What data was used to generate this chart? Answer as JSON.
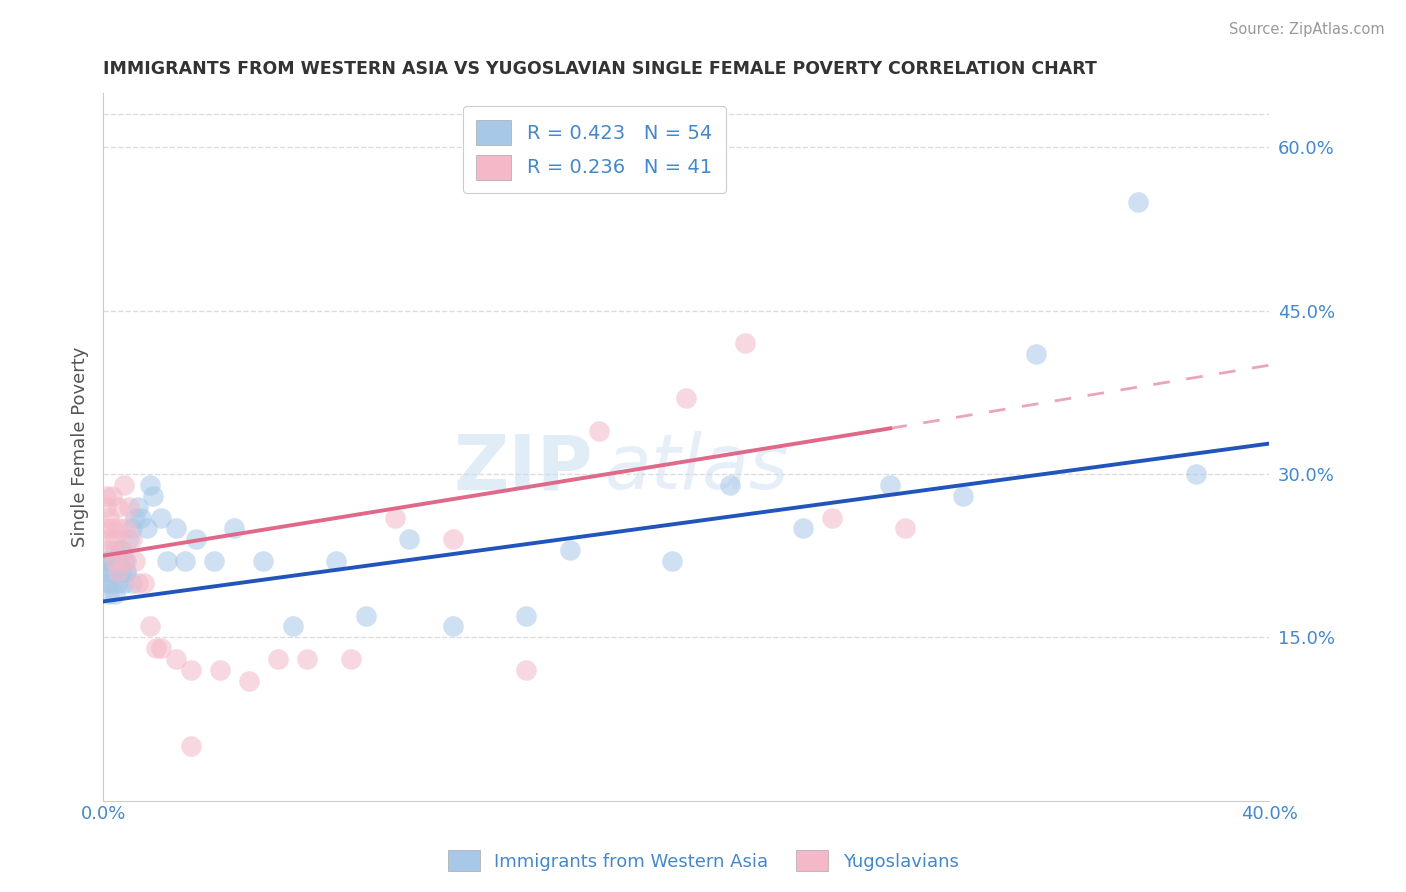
{
  "title": "IMMIGRANTS FROM WESTERN ASIA VS YUGOSLAVIAN SINGLE FEMALE POVERTY CORRELATION CHART",
  "source": "Source: ZipAtlas.com",
  "xlabel_blue": "Immigrants from Western Asia",
  "xlabel_pink": "Yugoslavians",
  "ylabel": "Single Female Poverty",
  "blue_R": 0.423,
  "blue_N": 54,
  "pink_R": 0.236,
  "pink_N": 41,
  "xlim": [
    0.0,
    0.4
  ],
  "ylim": [
    0.0,
    0.65
  ],
  "y_ticks_right": [
    0.15,
    0.3,
    0.45,
    0.6
  ],
  "y_tick_labels_right": [
    "15.0%",
    "30.0%",
    "45.0%",
    "60.0%"
  ],
  "blue_color": "#a8c8e8",
  "pink_color": "#f4b8c8",
  "blue_line_color": "#2255bb",
  "pink_line_color": "#e06888",
  "blue_line": [
    0.0,
    0.183,
    0.4,
    0.328
  ],
  "pink_line_solid": [
    0.0,
    0.225,
    0.27,
    0.342
  ],
  "pink_line_dashed": [
    0.27,
    0.342,
    0.4,
    0.4
  ],
  "blue_scatter_x": [
    0.001,
    0.001,
    0.001,
    0.002,
    0.002,
    0.002,
    0.002,
    0.003,
    0.003,
    0.003,
    0.004,
    0.004,
    0.005,
    0.005,
    0.005,
    0.006,
    0.006,
    0.007,
    0.007,
    0.008,
    0.008,
    0.008,
    0.009,
    0.01,
    0.01,
    0.011,
    0.012,
    0.013,
    0.015,
    0.016,
    0.017,
    0.02,
    0.022,
    0.025,
    0.028,
    0.032,
    0.038,
    0.045,
    0.055,
    0.065,
    0.08,
    0.09,
    0.105,
    0.12,
    0.145,
    0.16,
    0.195,
    0.215,
    0.24,
    0.27,
    0.295,
    0.32,
    0.355,
    0.375
  ],
  "blue_scatter_y": [
    0.22,
    0.21,
    0.2,
    0.21,
    0.2,
    0.19,
    0.22,
    0.21,
    0.22,
    0.2,
    0.19,
    0.23,
    0.21,
    0.2,
    0.22,
    0.23,
    0.21,
    0.2,
    0.22,
    0.21,
    0.21,
    0.22,
    0.24,
    0.2,
    0.25,
    0.26,
    0.27,
    0.26,
    0.25,
    0.29,
    0.28,
    0.26,
    0.22,
    0.25,
    0.22,
    0.24,
    0.22,
    0.25,
    0.22,
    0.16,
    0.22,
    0.17,
    0.24,
    0.16,
    0.17,
    0.23,
    0.22,
    0.29,
    0.25,
    0.29,
    0.28,
    0.41,
    0.55,
    0.3
  ],
  "pink_scatter_x": [
    0.001,
    0.001,
    0.001,
    0.002,
    0.002,
    0.002,
    0.003,
    0.003,
    0.004,
    0.004,
    0.005,
    0.005,
    0.005,
    0.006,
    0.007,
    0.007,
    0.008,
    0.009,
    0.01,
    0.011,
    0.012,
    0.014,
    0.016,
    0.018,
    0.02,
    0.025,
    0.03,
    0.04,
    0.05,
    0.06,
    0.07,
    0.085,
    0.1,
    0.12,
    0.145,
    0.17,
    0.2,
    0.22,
    0.25,
    0.275,
    0.03
  ],
  "pink_scatter_y": [
    0.28,
    0.27,
    0.25,
    0.26,
    0.24,
    0.23,
    0.25,
    0.28,
    0.24,
    0.22,
    0.21,
    0.25,
    0.27,
    0.23,
    0.29,
    0.22,
    0.25,
    0.27,
    0.24,
    0.22,
    0.2,
    0.2,
    0.16,
    0.14,
    0.14,
    0.13,
    0.12,
    0.12,
    0.11,
    0.13,
    0.13,
    0.13,
    0.26,
    0.24,
    0.12,
    0.34,
    0.37,
    0.42,
    0.26,
    0.25,
    0.05
  ],
  "watermark_zip": "ZIP",
  "watermark_atlas": "atlas",
  "background_color": "#ffffff",
  "grid_color": "#dddddd"
}
